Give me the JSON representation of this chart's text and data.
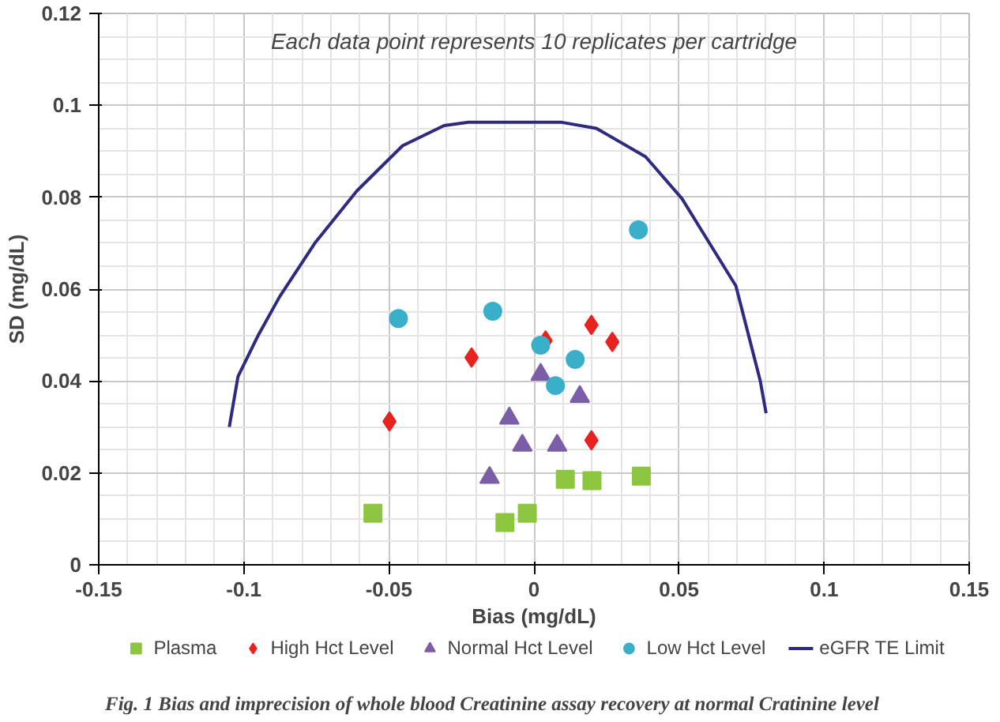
{
  "chart_data": {
    "type": "scatter",
    "xlabel": "Bias (mg/dL)",
    "ylabel": "SD (mg/dL)",
    "annotations": [
      "Each data point represents 10 replicates per cartridge",
      "Fig. 1 Bias and imprecision of whole blood Creatinine assay recovery at normal Cratinine level"
    ],
    "xlim": [
      -0.15,
      0.15
    ],
    "xticks": [
      -0.15,
      -0.1,
      -0.05,
      0,
      0.05,
      0.1,
      0.15
    ],
    "ylim": [
      0,
      0.12
    ],
    "yticks": [
      0,
      0.02,
      0.04,
      0.06,
      0.08,
      0.1,
      0.12
    ],
    "grid": true,
    "legend": "bottom",
    "series": [
      {
        "name": "Plasma",
        "color": "#8cc63f",
        "marker": "square",
        "x": [
          -0.0555,
          -0.01,
          -0.0023,
          0.0108,
          0.02,
          0.037
        ],
        "values": [
          0.0112,
          0.0092,
          0.0112,
          0.0186,
          0.0183,
          0.0193
        ]
      },
      {
        "name": "High Hct Level",
        "color": "#e8221e",
        "marker": "diamond",
        "x": [
          -0.0498,
          -0.0215,
          0.004,
          0.0198,
          0.027,
          0.0198
        ],
        "values": [
          0.0312,
          0.0451,
          0.0488,
          0.0522,
          0.0485,
          0.0271
        ]
      },
      {
        "name": "Normal Hct Level",
        "color": "#7b5ea7",
        "marker": "triangle",
        "x": [
          -0.0085,
          -0.004,
          -0.0153,
          0.0023,
          0.0158,
          0.008
        ],
        "values": [
          0.0319,
          0.026,
          0.019,
          0.0414,
          0.0366,
          0.026
        ]
      },
      {
        "name": "Low Hct Level",
        "color": "#3aafc9",
        "marker": "circle",
        "x": [
          -0.0467,
          -0.0142,
          0.0023,
          0.0142,
          0.0074,
          0.036
        ],
        "values": [
          0.0536,
          0.0552,
          0.0478,
          0.0447,
          0.039,
          0.0729
        ]
      },
      {
        "name": "eGFR TE Limit",
        "type": "line",
        "color": "#2e2a7f",
        "x": [
          -0.105,
          -0.102,
          -0.095,
          -0.0877,
          -0.0753,
          -0.061,
          -0.0453,
          -0.031,
          -0.0226,
          0.0096,
          0.0215,
          0.0385,
          0.051,
          0.0696,
          0.078,
          0.08
        ],
        "values": [
          0.03,
          0.041,
          0.05,
          0.0583,
          0.0702,
          0.0814,
          0.0912,
          0.0956,
          0.0963,
          0.0963,
          0.095,
          0.0888,
          0.0797,
          0.0607,
          0.04,
          0.033
        ]
      }
    ]
  }
}
